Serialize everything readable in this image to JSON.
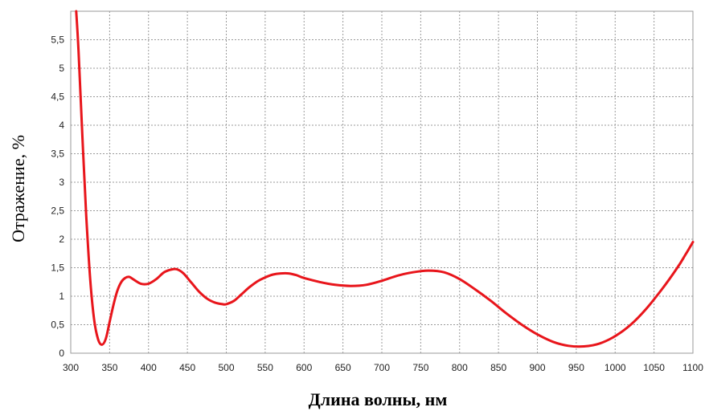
{
  "chart_data": {
    "type": "line",
    "title": "",
    "xlabel": "Длина волны, нм",
    "ylabel": "Отражение, %",
    "xlim": [
      300,
      1100
    ],
    "ylim": [
      0,
      6
    ],
    "x_ticks": [
      "300",
      "350",
      "400",
      "450",
      "500",
      "550",
      "600",
      "650",
      "700",
      "750",
      "800",
      "850",
      "900",
      "950",
      "1000",
      "1050",
      "1100"
    ],
    "y_ticks": [
      "0",
      "0,5",
      "1",
      "1,5",
      "2",
      "2,5",
      "3",
      "3,5",
      "4",
      "4,5",
      "5",
      "5,5"
    ],
    "grid": true,
    "legend": "none",
    "series": [
      {
        "color": "#e8151b",
        "x": [
          307,
          310,
          315,
          320,
          325,
          330,
          335,
          340,
          345,
          350,
          355,
          360,
          365,
          370,
          375,
          380,
          390,
          400,
          410,
          420,
          430,
          437,
          445,
          455,
          465,
          475,
          485,
          495,
          500,
          510,
          520,
          530,
          540,
          550,
          560,
          570,
          580,
          590,
          600,
          620,
          640,
          660,
          680,
          700,
          720,
          740,
          760,
          780,
          800,
          820,
          840,
          860,
          880,
          900,
          920,
          940,
          960,
          980,
          1000,
          1020,
          1040,
          1060,
          1080,
          1090,
          1100
        ],
        "y": [
          6.0,
          5.3,
          3.8,
          2.4,
          1.3,
          0.6,
          0.25,
          0.15,
          0.25,
          0.55,
          0.85,
          1.1,
          1.25,
          1.32,
          1.34,
          1.3,
          1.22,
          1.22,
          1.3,
          1.42,
          1.47,
          1.47,
          1.4,
          1.24,
          1.08,
          0.96,
          0.89,
          0.86,
          0.86,
          0.92,
          1.04,
          1.16,
          1.26,
          1.33,
          1.38,
          1.4,
          1.4,
          1.37,
          1.32,
          1.25,
          1.2,
          1.18,
          1.2,
          1.27,
          1.36,
          1.42,
          1.45,
          1.42,
          1.3,
          1.12,
          0.92,
          0.7,
          0.5,
          0.33,
          0.2,
          0.13,
          0.12,
          0.17,
          0.3,
          0.5,
          0.78,
          1.12,
          1.5,
          1.72,
          1.95
        ]
      }
    ]
  }
}
